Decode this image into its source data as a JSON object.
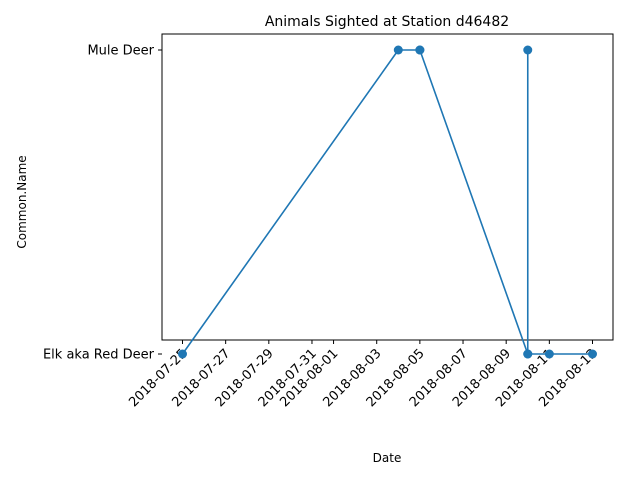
{
  "chart_data": {
    "type": "line",
    "title": "Animals Sighted at Station d46482",
    "xlabel": "Date",
    "ylabel": "Common.Name",
    "x_ticks": [
      "2018-07-25",
      "2018-07-27",
      "2018-07-29",
      "2018-07-31",
      "2018-08-01",
      "2018-08-03",
      "2018-08-05",
      "2018-08-07",
      "2018-08-09",
      "2018-08-11",
      "2018-08-13"
    ],
    "y_categories": [
      "Elk aka Red Deer",
      "Mule Deer"
    ],
    "xlim": [
      "2018-07-24",
      "2018-08-14"
    ],
    "grid": false,
    "legend": "none",
    "series": [
      {
        "color": "#1f77b4",
        "marker": "circle",
        "points": [
          {
            "x": "2018-07-25",
            "y": "Elk aka Red Deer"
          },
          {
            "x": "2018-08-04",
            "y": "Mule Deer"
          },
          {
            "x": "2018-08-05",
            "y": "Mule Deer"
          },
          {
            "x": "2018-08-05",
            "y": "Mule Deer"
          },
          {
            "x": "2018-08-10",
            "y": "Elk aka Red Deer"
          },
          {
            "x": "2018-08-10",
            "y": "Mule Deer"
          },
          {
            "x": "2018-08-10",
            "y": "Elk aka Red Deer"
          },
          {
            "x": "2018-08-11",
            "y": "Elk aka Red Deer"
          },
          {
            "x": "2018-08-13",
            "y": "Elk aka Red Deer"
          }
        ]
      }
    ]
  }
}
